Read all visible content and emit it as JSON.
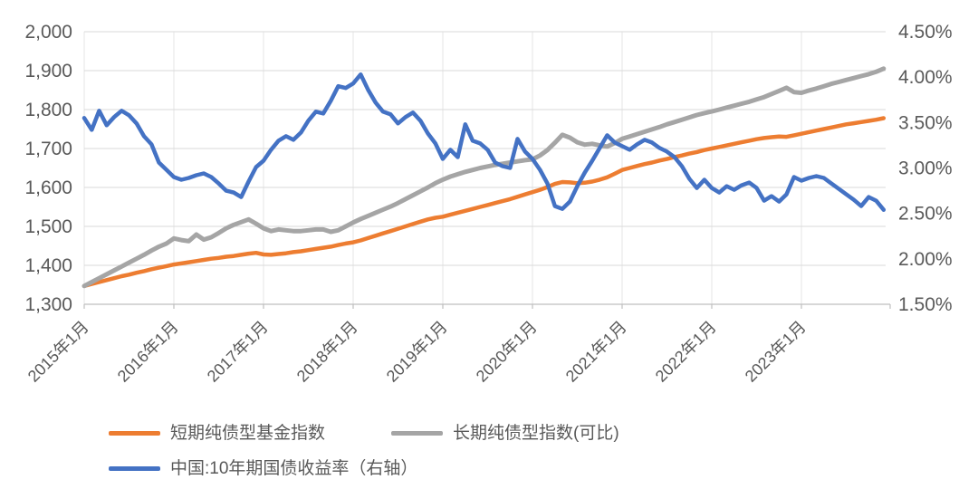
{
  "page": {
    "background": "#FFFFFF"
  },
  "colors": {
    "axis_text": "#595959",
    "gridline": "#D9D9D9",
    "year_gridline": "#E6E6E6",
    "axis_line": "#BFBFBF",
    "series_orange": "#ED7D31",
    "series_gray": "#A5A5A5",
    "series_blue": "#4472C4"
  },
  "chart_data": {
    "type": "line",
    "title": "",
    "x_start": "2015年1月",
    "x_frequency": "monthly",
    "n_points": 108,
    "x_tick_labels": [
      "2015年1月",
      "2016年1月",
      "2017年1月",
      "2018年1月",
      "2019年1月",
      "2020年1月",
      "2021年1月",
      "2022年1月",
      "2023年1月"
    ],
    "left_axis": {
      "min": 1300,
      "max": 2000,
      "step": 100,
      "tick_labels": [
        "1,300",
        "1,400",
        "1,500",
        "1,600",
        "1,700",
        "1,800",
        "1,900",
        "2,000"
      ]
    },
    "right_axis": {
      "min": 1.5,
      "max": 4.5,
      "step": 0.5,
      "tick_labels": [
        "1.50%",
        "2.00%",
        "2.50%",
        "3.00%",
        "3.50%",
        "4.00%",
        "4.50%"
      ]
    },
    "grid": {
      "horizontal": true,
      "vertical_years": true
    },
    "legend_position": "bottom-left",
    "series": [
      {
        "id": "short-term-pure-bond-fund-index",
        "name": "短期纯债型基金指数",
        "axis": "left",
        "color": "#ED7D31",
        "stroke_width": 4.5,
        "values": [
          1347,
          1352,
          1357,
          1362,
          1367,
          1372,
          1376,
          1381,
          1385,
          1390,
          1394,
          1398,
          1402,
          1405,
          1408,
          1411,
          1414,
          1417,
          1419,
          1422,
          1424,
          1427,
          1430,
          1432,
          1428,
          1427,
          1429,
          1431,
          1434,
          1436,
          1439,
          1442,
          1445,
          1448,
          1452,
          1456,
          1459,
          1464,
          1470,
          1476,
          1482,
          1488,
          1494,
          1500,
          1506,
          1512,
          1518,
          1522,
          1525,
          1530,
          1535,
          1540,
          1545,
          1550,
          1555,
          1560,
          1565,
          1570,
          1576,
          1582,
          1588,
          1594,
          1601,
          1609,
          1614,
          1613,
          1611,
          1612,
          1615,
          1620,
          1626,
          1635,
          1645,
          1650,
          1655,
          1660,
          1664,
          1669,
          1673,
          1678,
          1682,
          1687,
          1691,
          1696,
          1700,
          1704,
          1708,
          1712,
          1716,
          1720,
          1724,
          1727,
          1729,
          1731,
          1730,
          1734,
          1738,
          1742,
          1746,
          1750,
          1754,
          1758,
          1762,
          1765,
          1768,
          1771,
          1774,
          1778
        ]
      },
      {
        "id": "long-term-pure-bond-index-comparable",
        "name": "长期纯债型指数(可比)",
        "axis": "left",
        "color": "#A5A5A5",
        "stroke_width": 5,
        "values": [
          1347,
          1357,
          1367,
          1377,
          1387,
          1397,
          1407,
          1417,
          1427,
          1438,
          1448,
          1456,
          1469,
          1465,
          1462,
          1479,
          1466,
          1472,
          1483,
          1495,
          1504,
          1511,
          1518,
          1507,
          1495,
          1488,
          1492,
          1490,
          1488,
          1488,
          1490,
          1492,
          1492,
          1486,
          1490,
          1500,
          1510,
          1519,
          1527,
          1535,
          1543,
          1551,
          1560,
          1570,
          1580,
          1590,
          1600,
          1611,
          1620,
          1628,
          1634,
          1640,
          1645,
          1650,
          1654,
          1658,
          1661,
          1664,
          1667,
          1670,
          1672,
          1682,
          1696,
          1715,
          1735,
          1728,
          1716,
          1710,
          1712,
          1708,
          1705,
          1714,
          1725,
          1731,
          1737,
          1743,
          1749,
          1755,
          1762,
          1768,
          1774,
          1780,
          1786,
          1791,
          1795,
          1800,
          1805,
          1810,
          1815,
          1820,
          1826,
          1832,
          1840,
          1848,
          1856,
          1845,
          1843,
          1849,
          1854,
          1860,
          1866,
          1871,
          1876,
          1881,
          1886,
          1891,
          1897,
          1905
        ]
      },
      {
        "id": "china-10y-treasury-yield",
        "name": "中国:10年期国债收益率（右轴）",
        "axis": "right",
        "color": "#4472C4",
        "stroke_width": 4.5,
        "values": [
          3.55,
          3.42,
          3.63,
          3.47,
          3.56,
          3.63,
          3.58,
          3.49,
          3.35,
          3.26,
          3.06,
          2.98,
          2.9,
          2.87,
          2.89,
          2.92,
          2.94,
          2.9,
          2.83,
          2.75,
          2.73,
          2.68,
          2.85,
          3.01,
          3.08,
          3.2,
          3.3,
          3.35,
          3.31,
          3.39,
          3.52,
          3.62,
          3.6,
          3.74,
          3.9,
          3.88,
          3.93,
          4.03,
          3.86,
          3.72,
          3.62,
          3.59,
          3.49,
          3.56,
          3.61,
          3.52,
          3.38,
          3.27,
          3.1,
          3.2,
          3.12,
          3.48,
          3.3,
          3.27,
          3.2,
          3.06,
          3.02,
          3.0,
          3.32,
          3.18,
          3.1,
          2.98,
          2.83,
          2.58,
          2.55,
          2.63,
          2.8,
          2.95,
          3.08,
          3.22,
          3.36,
          3.28,
          3.24,
          3.2,
          3.26,
          3.31,
          3.28,
          3.22,
          3.18,
          3.12,
          3.02,
          2.88,
          2.78,
          2.87,
          2.78,
          2.73,
          2.8,
          2.76,
          2.81,
          2.84,
          2.78,
          2.64,
          2.69,
          2.63,
          2.71,
          2.9,
          2.86,
          2.89,
          2.91,
          2.89,
          2.83,
          2.77,
          2.71,
          2.65,
          2.58,
          2.68,
          2.64,
          2.54
        ]
      }
    ]
  },
  "legend": {
    "row1_item1": "短期纯债型基金指数",
    "row1_item2": "长期纯债型指数(可比)",
    "row2_item1": "中国:10年期国债收益率（右轴）"
  }
}
